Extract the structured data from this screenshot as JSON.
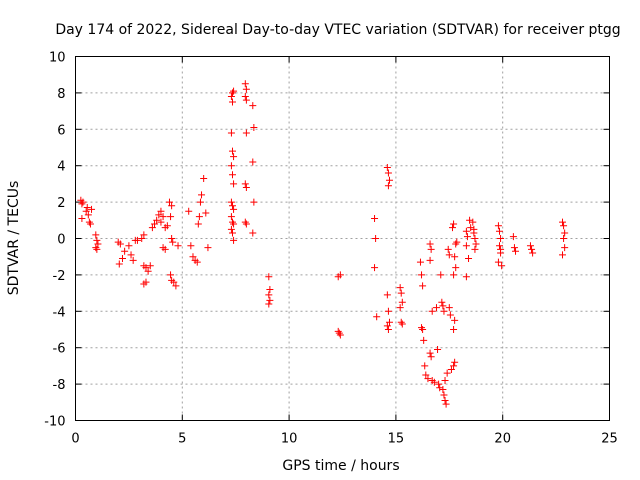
{
  "chart_data": {
    "type": "scatter",
    "title": "Day 174 of 2022, Sidereal Day-to-day VTEC variation (SDTVAR) for receiver ptgg",
    "xlabel": "GPS time / hours",
    "ylabel": "SDTVAR / TECUs",
    "xlim": [
      0,
      25
    ],
    "ylim": [
      -10,
      10
    ],
    "xticks": [
      0,
      5,
      10,
      15,
      20,
      25
    ],
    "yticks": [
      -10,
      -8,
      -6,
      -4,
      -2,
      0,
      2,
      4,
      6,
      8,
      10
    ],
    "grid": true,
    "marker": "+",
    "color": "#ff0000",
    "series": [
      {
        "name": "SDTVAR",
        "points": [
          [
            0.25,
            2.1
          ],
          [
            0.3,
            1.9
          ],
          [
            0.35,
            2.0
          ],
          [
            0.3,
            1.1
          ],
          [
            0.5,
            1.5
          ],
          [
            0.55,
            1.7
          ],
          [
            0.6,
            1.3
          ],
          [
            0.65,
            0.9
          ],
          [
            0.7,
            0.8
          ],
          [
            0.75,
            1.6
          ],
          [
            0.95,
            0.2
          ],
          [
            1.0,
            -0.1
          ],
          [
            1.05,
            -0.3
          ],
          [
            1.0,
            -0.6
          ],
          [
            0.95,
            -0.5
          ],
          [
            2.0,
            -0.2
          ],
          [
            2.1,
            -0.3
          ],
          [
            2.05,
            -1.4
          ],
          [
            2.2,
            -1.1
          ],
          [
            2.3,
            -0.7
          ],
          [
            2.5,
            -0.4
          ],
          [
            2.6,
            -0.9
          ],
          [
            2.7,
            -1.2
          ],
          [
            2.8,
            -0.1
          ],
          [
            2.9,
            -0.1
          ],
          [
            3.1,
            0.0
          ],
          [
            3.2,
            0.2
          ],
          [
            3.2,
            -1.5
          ],
          [
            3.3,
            -1.6
          ],
          [
            3.4,
            -1.8
          ],
          [
            3.3,
            -2.4
          ],
          [
            3.2,
            -2.5
          ],
          [
            3.5,
            -1.5
          ],
          [
            3.6,
            0.6
          ],
          [
            3.7,
            0.8
          ],
          [
            3.8,
            1.0
          ],
          [
            3.9,
            1.3
          ],
          [
            4.0,
            1.5
          ],
          [
            4.1,
            1.2
          ],
          [
            4.0,
            0.9
          ],
          [
            4.2,
            0.6
          ],
          [
            4.3,
            0.7
          ],
          [
            4.2,
            -0.6
          ],
          [
            4.1,
            -0.5
          ],
          [
            4.4,
            2.0
          ],
          [
            4.5,
            1.8
          ],
          [
            4.45,
            1.2
          ],
          [
            4.5,
            0.0
          ],
          [
            4.55,
            -0.2
          ],
          [
            4.45,
            -2.0
          ],
          [
            4.5,
            -2.3
          ],
          [
            4.6,
            -2.4
          ],
          [
            4.7,
            -2.6
          ],
          [
            4.8,
            -0.4
          ],
          [
            5.4,
            -0.4
          ],
          [
            5.5,
            -1.0
          ],
          [
            5.6,
            -1.2
          ],
          [
            5.7,
            -1.3
          ],
          [
            5.75,
            0.8
          ],
          [
            5.8,
            1.2
          ],
          [
            5.85,
            2.0
          ],
          [
            5.9,
            2.4
          ],
          [
            6.1,
            1.4
          ],
          [
            6.0,
            3.3
          ],
          [
            6.2,
            -0.5
          ],
          [
            5.3,
            1.5
          ],
          [
            7.3,
            7.8
          ],
          [
            7.35,
            8.0
          ],
          [
            7.4,
            8.1
          ],
          [
            7.35,
            7.5
          ],
          [
            7.3,
            5.8
          ],
          [
            7.35,
            4.8
          ],
          [
            7.4,
            4.5
          ],
          [
            7.3,
            4.0
          ],
          [
            7.35,
            3.5
          ],
          [
            7.4,
            3.0
          ],
          [
            7.3,
            2.0
          ],
          [
            7.35,
            1.8
          ],
          [
            7.4,
            1.6
          ],
          [
            7.3,
            1.2
          ],
          [
            7.35,
            0.9
          ],
          [
            7.4,
            0.8
          ],
          [
            7.3,
            0.5
          ],
          [
            7.35,
            0.3
          ],
          [
            7.4,
            -0.1
          ],
          [
            7.95,
            8.5
          ],
          [
            8.0,
            8.2
          ],
          [
            7.95,
            7.8
          ],
          [
            8.0,
            7.6
          ],
          [
            8.0,
            5.8
          ],
          [
            7.95,
            3.0
          ],
          [
            8.0,
            2.8
          ],
          [
            7.95,
            0.9
          ],
          [
            8.0,
            0.8
          ],
          [
            8.3,
            7.3
          ],
          [
            8.35,
            6.1
          ],
          [
            8.3,
            4.2
          ],
          [
            8.35,
            2.0
          ],
          [
            8.3,
            0.3
          ],
          [
            9.05,
            -2.1
          ],
          [
            9.1,
            -2.8
          ],
          [
            9.05,
            -3.1
          ],
          [
            9.1,
            -3.4
          ],
          [
            9.05,
            -3.6
          ],
          [
            12.3,
            -2.1
          ],
          [
            12.4,
            -2.0
          ],
          [
            12.3,
            -5.1
          ],
          [
            12.35,
            -5.2
          ],
          [
            12.4,
            -5.3
          ],
          [
            14.0,
            1.1
          ],
          [
            14.05,
            0.0
          ],
          [
            14.0,
            -1.6
          ],
          [
            14.1,
            -4.3
          ],
          [
            14.6,
            3.9
          ],
          [
            14.65,
            3.6
          ],
          [
            14.7,
            3.2
          ],
          [
            14.65,
            2.9
          ],
          [
            14.6,
            -3.1
          ],
          [
            14.65,
            -4.0
          ],
          [
            14.7,
            -4.6
          ],
          [
            14.6,
            -4.8
          ],
          [
            14.65,
            -5.0
          ],
          [
            15.2,
            -2.7
          ],
          [
            15.25,
            -3.0
          ],
          [
            15.3,
            -3.5
          ],
          [
            15.2,
            -3.8
          ],
          [
            15.25,
            -4.6
          ],
          [
            15.3,
            -4.7
          ],
          [
            16.15,
            -1.3
          ],
          [
            16.2,
            -2.0
          ],
          [
            16.25,
            -2.6
          ],
          [
            16.2,
            -4.9
          ],
          [
            16.25,
            -5.0
          ],
          [
            16.3,
            -5.6
          ],
          [
            16.35,
            -7.0
          ],
          [
            16.4,
            -7.5
          ],
          [
            16.5,
            -7.7
          ],
          [
            16.6,
            -0.3
          ],
          [
            16.65,
            -0.6
          ],
          [
            16.6,
            -1.2
          ],
          [
            16.7,
            -4.0
          ],
          [
            16.6,
            -6.3
          ],
          [
            16.65,
            -6.5
          ],
          [
            16.7,
            -7.8
          ],
          [
            16.8,
            -7.9
          ],
          [
            16.9,
            -3.8
          ],
          [
            16.95,
            -6.1
          ],
          [
            17.0,
            -8.0
          ],
          [
            17.05,
            -8.2
          ],
          [
            17.1,
            -2.0
          ],
          [
            17.15,
            -3.5
          ],
          [
            17.2,
            -3.7
          ],
          [
            17.25,
            -4.0
          ],
          [
            17.2,
            -8.3
          ],
          [
            17.25,
            -8.6
          ],
          [
            17.3,
            -8.9
          ],
          [
            17.35,
            -9.1
          ],
          [
            17.3,
            -7.8
          ],
          [
            17.4,
            -7.4
          ],
          [
            17.45,
            -0.6
          ],
          [
            17.5,
            -0.9
          ],
          [
            17.5,
            -3.8
          ],
          [
            17.55,
            -4.2
          ],
          [
            17.6,
            -7.2
          ],
          [
            17.7,
            -7.0
          ],
          [
            17.75,
            -6.8
          ],
          [
            17.65,
            0.6
          ],
          [
            17.7,
            0.8
          ],
          [
            17.75,
            -1.0
          ],
          [
            17.7,
            -2.0
          ],
          [
            17.8,
            -1.6
          ],
          [
            17.75,
            -4.5
          ],
          [
            17.7,
            -5.0
          ],
          [
            17.8,
            -0.3
          ],
          [
            17.85,
            -0.2
          ],
          [
            18.3,
            0.4
          ],
          [
            18.35,
            0.1
          ],
          [
            18.3,
            -0.4
          ],
          [
            18.4,
            -1.1
          ],
          [
            18.3,
            -2.1
          ],
          [
            18.45,
            1.0
          ],
          [
            18.5,
            0.6
          ],
          [
            18.6,
            0.9
          ],
          [
            18.65,
            0.5
          ],
          [
            18.7,
            0.0
          ],
          [
            18.75,
            -0.3
          ],
          [
            18.7,
            -0.6
          ],
          [
            18.65,
            0.3
          ],
          [
            19.8,
            0.7
          ],
          [
            19.85,
            0.4
          ],
          [
            19.9,
            0.0
          ],
          [
            19.85,
            -0.4
          ],
          [
            19.9,
            -0.8
          ],
          [
            19.8,
            -1.3
          ],
          [
            19.95,
            -1.5
          ],
          [
            19.9,
            -0.6
          ],
          [
            20.5,
            0.1
          ],
          [
            20.55,
            -0.5
          ],
          [
            20.6,
            -0.7
          ],
          [
            21.3,
            -0.4
          ],
          [
            21.35,
            -0.6
          ],
          [
            21.4,
            -0.8
          ],
          [
            22.8,
            0.9
          ],
          [
            22.85,
            0.7
          ],
          [
            22.9,
            0.3
          ],
          [
            22.85,
            0.0
          ],
          [
            22.9,
            -0.5
          ],
          [
            22.8,
            -0.9
          ]
        ]
      }
    ]
  }
}
